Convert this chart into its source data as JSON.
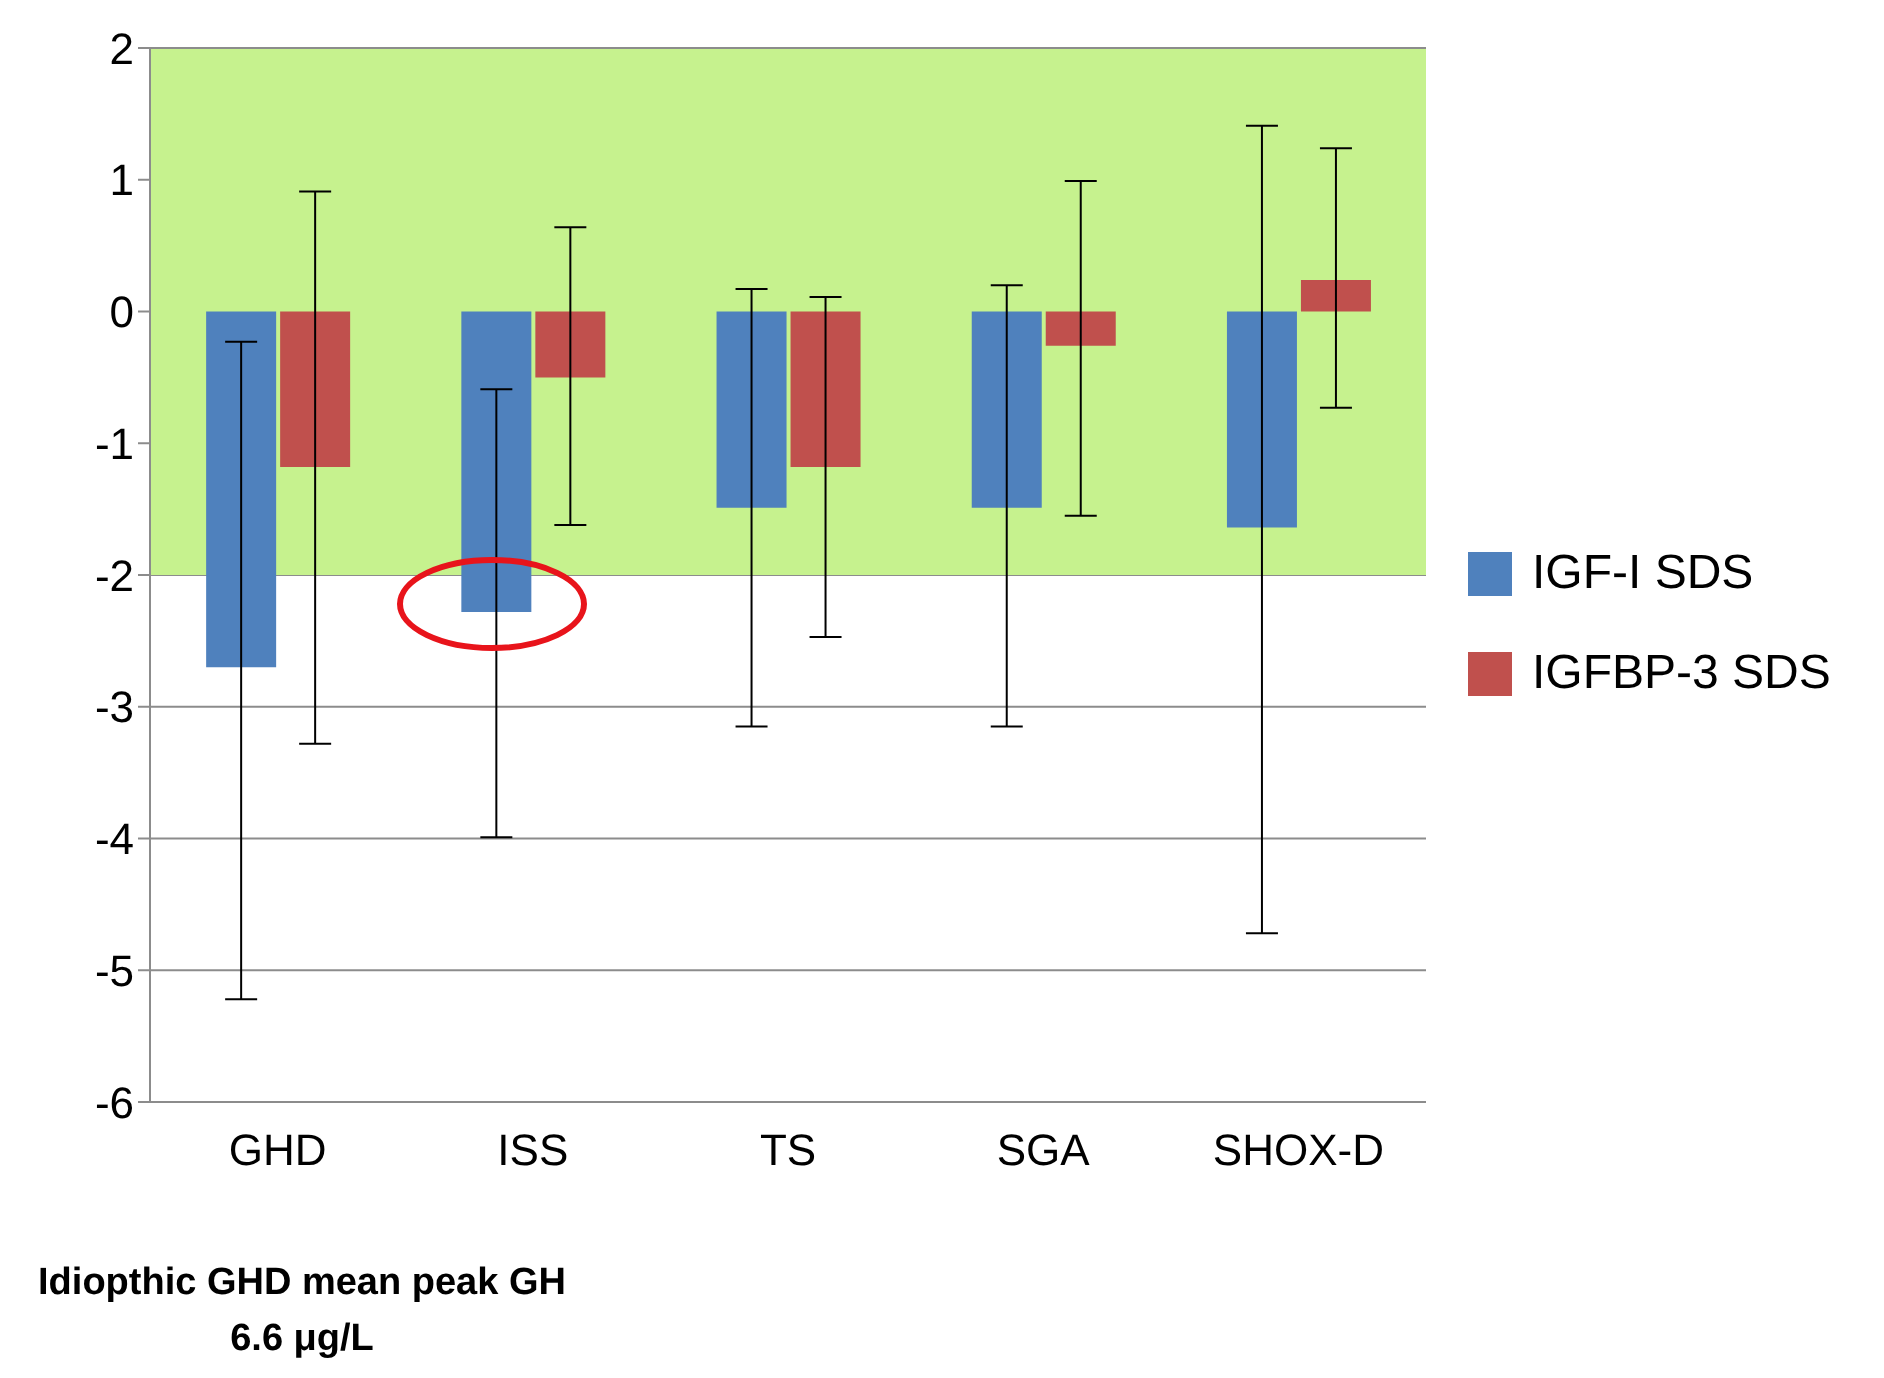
{
  "chart_data": {
    "type": "bar",
    "categories": [
      "GHD",
      "ISS",
      "TS",
      "SGA",
      "SHOX-D"
    ],
    "series": [
      {
        "name": "IGF-I SDS",
        "color": "#4f81bd",
        "values": [
          -2.7,
          -2.28,
          -1.49,
          -1.49,
          -1.64
        ],
        "errors": [
          [
            -5.22,
            -0.23
          ],
          [
            -3.99,
            -0.59
          ],
          [
            -3.15,
            0.17
          ],
          [
            -3.15,
            0.2
          ],
          [
            -4.72,
            1.41
          ]
        ]
      },
      {
        "name": "IGFBP-3 SDS",
        "color": "#c0504d",
        "values": [
          -1.18,
          -0.5,
          -1.18,
          -0.26,
          0.24
        ],
        "errors": [
          [
            -3.28,
            0.91
          ],
          [
            -1.62,
            0.64
          ],
          [
            -2.47,
            0.11
          ],
          [
            -1.55,
            0.99
          ],
          [
            -0.73,
            1.24
          ]
        ]
      }
    ],
    "ylim": [
      -6,
      2
    ],
    "yticks": [
      -6,
      -5,
      -4,
      -3,
      -2,
      -1,
      0,
      1,
      2
    ],
    "grid": "y",
    "legend": "right",
    "bands": [
      {
        "axis": "y",
        "from": -2,
        "to": 2,
        "color": "#c6f28e"
      }
    ],
    "annotations": [
      "Idiopthic GHD mean peak GH 6.6 μg/L"
    ]
  }
}
